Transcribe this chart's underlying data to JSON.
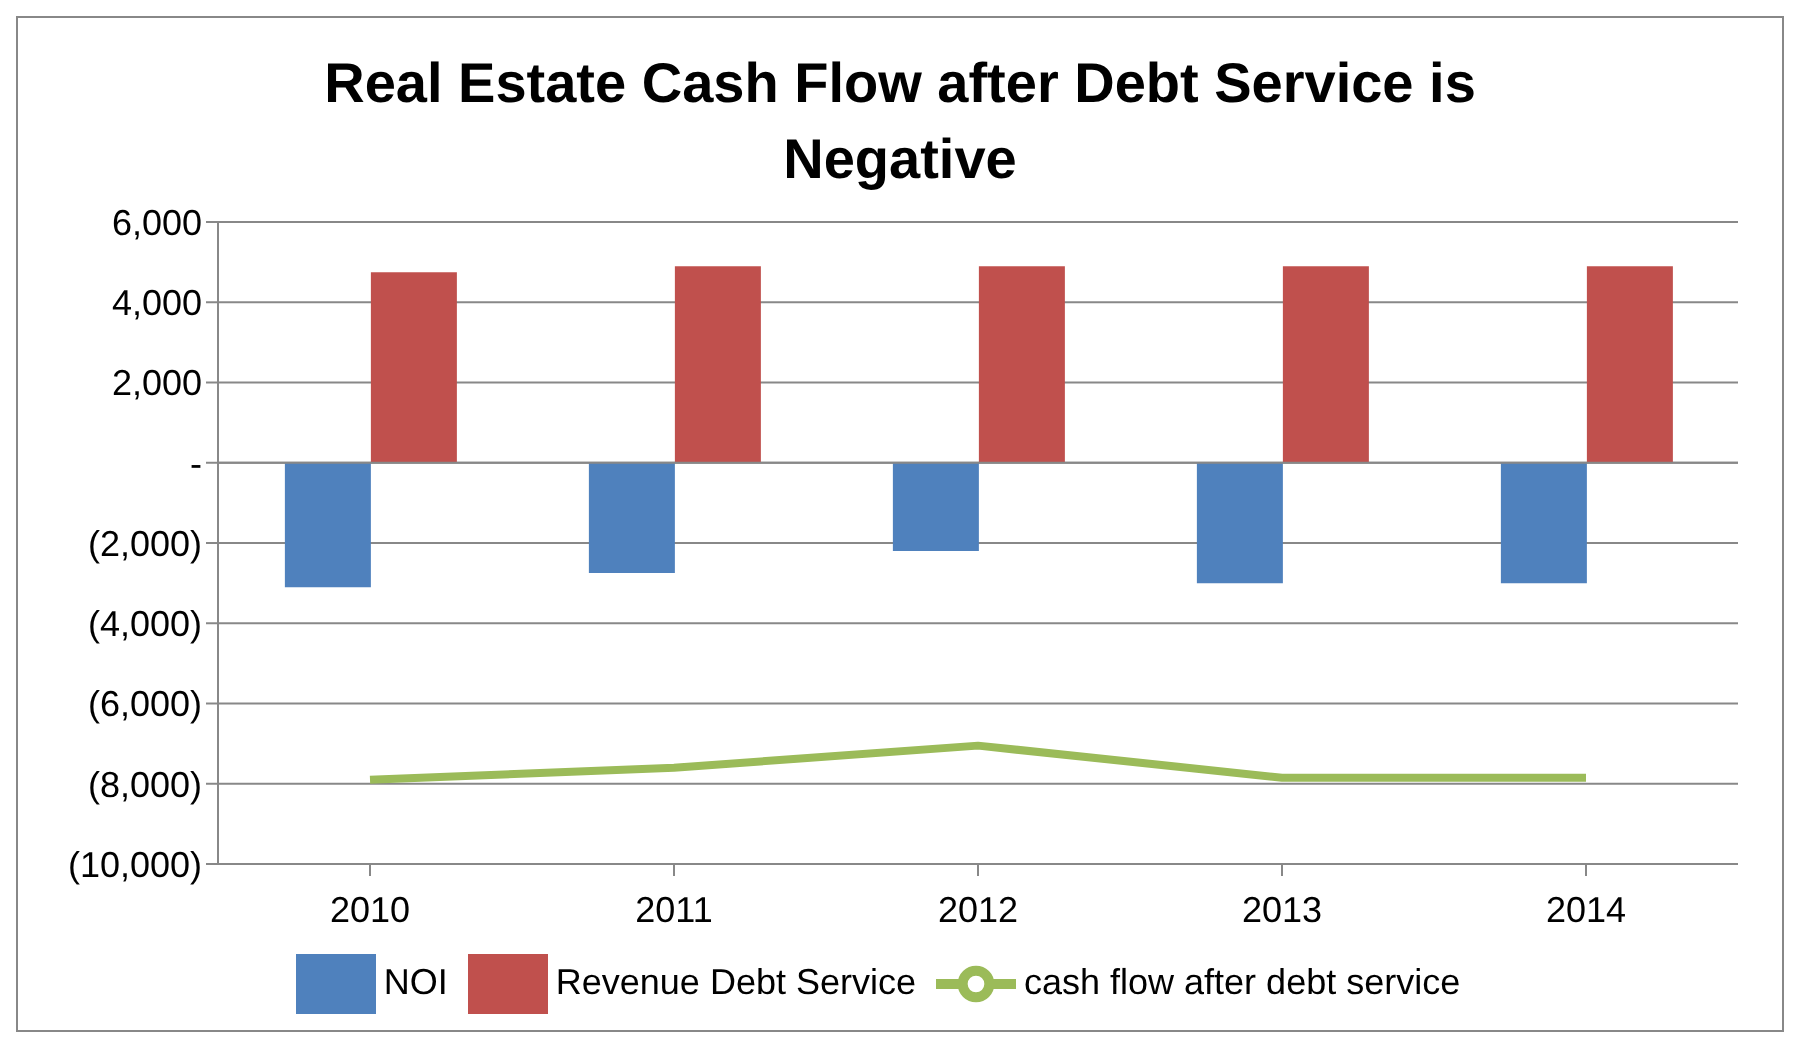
{
  "chart_data": {
    "type": "bar",
    "title": "Real Estate Cash Flow after Debt Service is Negative",
    "categories": [
      "2010",
      "2011",
      "2012",
      "2013",
      "2014"
    ],
    "series": [
      {
        "name": "NOI",
        "color": "#4f81bd",
        "values": [
          -3100,
          -2750,
          -2200,
          -3000,
          -3000
        ]
      },
      {
        "name": "Revenue Debt Service",
        "color": "#c0504d",
        "values": [
          4750,
          4900,
          4900,
          4900,
          4900
        ]
      },
      {
        "name": "cash flow after debt service",
        "type": "line",
        "color": "#9bbb59",
        "values": [
          -7900,
          -7600,
          -7050,
          -7850,
          -7850
        ]
      }
    ],
    "ylim": [
      -10000,
      6000
    ],
    "yticks": [
      {
        "value": -10000,
        "label": "(10,000)"
      },
      {
        "value": -8000,
        "label": "(8,000)"
      },
      {
        "value": -6000,
        "label": "(6,000)"
      },
      {
        "value": -4000,
        "label": "(4,000)"
      },
      {
        "value": -2000,
        "label": "(2,000)"
      },
      {
        "value": 0,
        "label": "-"
      },
      {
        "value": 2000,
        "label": "2,000"
      },
      {
        "value": 4000,
        "label": "4,000"
      },
      {
        "value": 6000,
        "label": "6,000"
      }
    ],
    "grid": "y",
    "legend": "bottom"
  }
}
